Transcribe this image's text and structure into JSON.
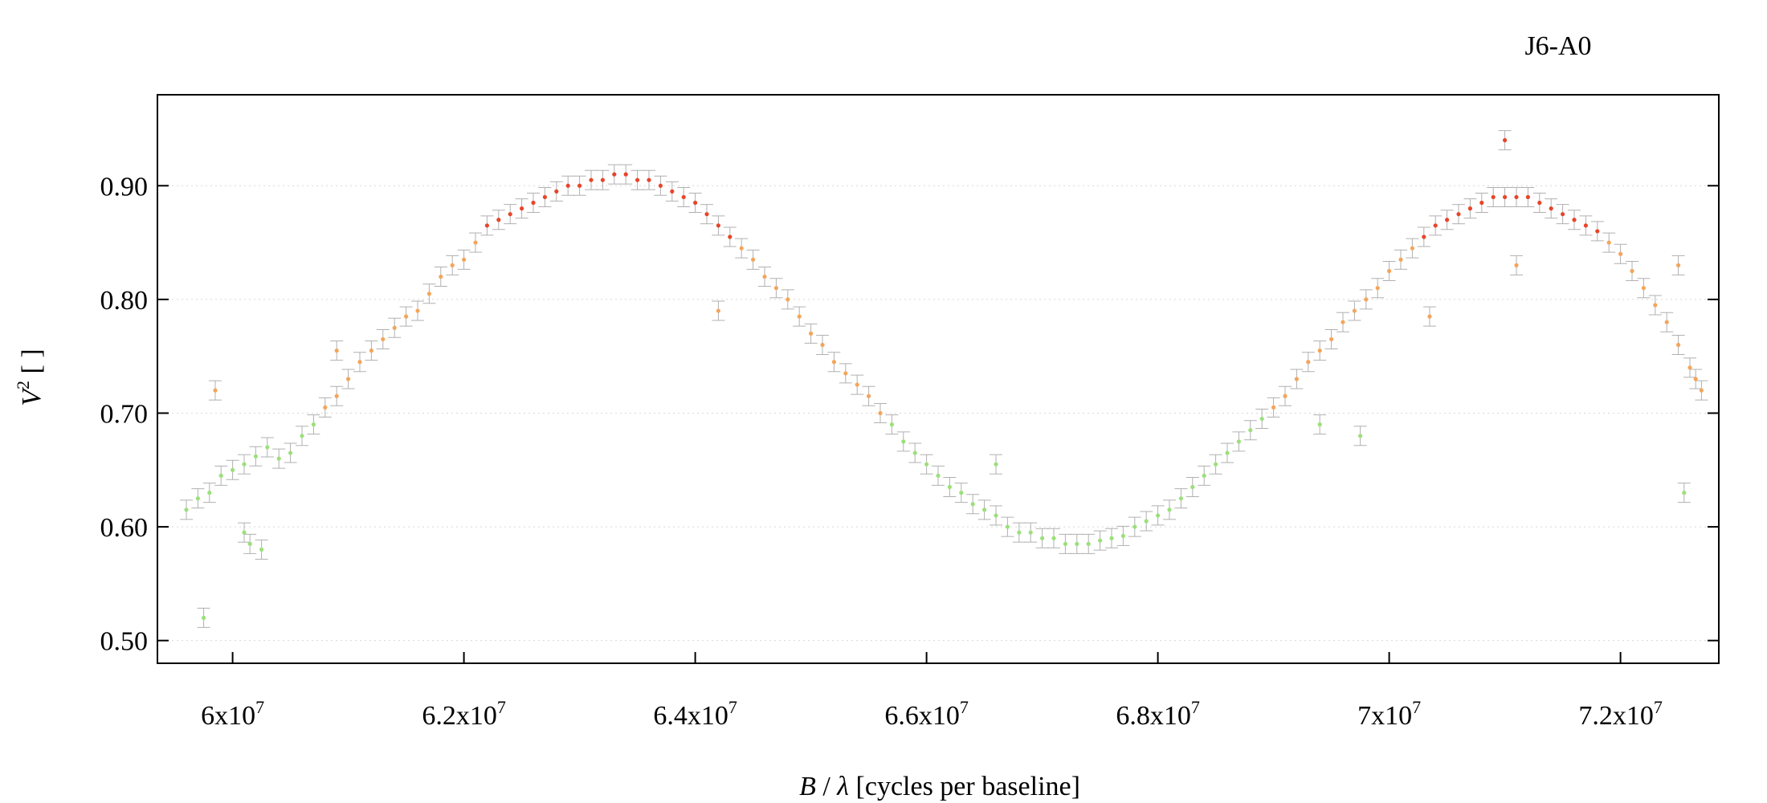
{
  "chart_data": {
    "type": "scatter",
    "title": "J6-A0",
    "xlabel": {
      "italic": "B",
      "slash": " / ",
      "greek": "λ",
      "rest": " [cycles per baseline]"
    },
    "ylabel": {
      "base": "V",
      "sup": "2",
      "rest": " [ ]"
    },
    "xlim": [
      59350000,
      72850000
    ],
    "ylim": [
      0.48,
      0.98
    ],
    "xticks": [
      {
        "value": 60000000,
        "mant": "6x10",
        "exp": "7"
      },
      {
        "value": 62000000,
        "mant": "6.2x10",
        "exp": "7"
      },
      {
        "value": 64000000,
        "mant": "6.4x10",
        "exp": "7"
      },
      {
        "value": 66000000,
        "mant": "6.6x10",
        "exp": "7"
      },
      {
        "value": 68000000,
        "mant": "6.8x10",
        "exp": "7"
      },
      {
        "value": 70000000,
        "mant": "7x10",
        "exp": "7"
      },
      {
        "value": 72000000,
        "mant": "7.2x10",
        "exp": "7"
      }
    ],
    "yticks": [
      {
        "value": 0.5,
        "label": "0.50"
      },
      {
        "value": 0.6,
        "label": "0.60"
      },
      {
        "value": 0.7,
        "label": "0.70"
      },
      {
        "value": 0.8,
        "label": "0.80"
      },
      {
        "value": 0.9,
        "label": "0.90"
      }
    ],
    "grid": "horizontal dotted",
    "colors": {
      "low": "#9be07a",
      "mid": "#f4a55a",
      "high": "#e8452a",
      "errorbar": "#b0b0b0"
    },
    "series": [
      {
        "points": [
          [
            59600000,
            0.615
          ],
          [
            59700000,
            0.625
          ],
          [
            59800000,
            0.63
          ],
          [
            59900000,
            0.645
          ],
          [
            60000000,
            0.65
          ],
          [
            60100000,
            0.655
          ],
          [
            60200000,
            0.662
          ],
          [
            60300000,
            0.67
          ],
          [
            60400000,
            0.66
          ],
          [
            60500000,
            0.665
          ],
          [
            60600000,
            0.68
          ],
          [
            60700000,
            0.69
          ],
          [
            60800000,
            0.705
          ],
          [
            60900000,
            0.715
          ],
          [
            61000000,
            0.73
          ],
          [
            61100000,
            0.745
          ],
          [
            61200000,
            0.755
          ],
          [
            61300000,
            0.765
          ],
          [
            61400000,
            0.775
          ],
          [
            61500000,
            0.785
          ],
          [
            61600000,
            0.79
          ],
          [
            61700000,
            0.805
          ],
          [
            61800000,
            0.82
          ],
          [
            61900000,
            0.83
          ],
          [
            62000000,
            0.835
          ],
          [
            62100000,
            0.85
          ],
          [
            62200000,
            0.865
          ],
          [
            62300000,
            0.87
          ],
          [
            62400000,
            0.875
          ],
          [
            62500000,
            0.88
          ],
          [
            62600000,
            0.885
          ],
          [
            62700000,
            0.89
          ],
          [
            62800000,
            0.895
          ],
          [
            62900000,
            0.9
          ],
          [
            63000000,
            0.9
          ],
          [
            63100000,
            0.905
          ],
          [
            63200000,
            0.905
          ],
          [
            63300000,
            0.91
          ],
          [
            63400000,
            0.91
          ],
          [
            63500000,
            0.905
          ],
          [
            63600000,
            0.905
          ],
          [
            63700000,
            0.9
          ],
          [
            63800000,
            0.895
          ],
          [
            63900000,
            0.89
          ],
          [
            64000000,
            0.885
          ],
          [
            64100000,
            0.875
          ],
          [
            64200000,
            0.865
          ],
          [
            64300000,
            0.855
          ],
          [
            64400000,
            0.845
          ],
          [
            64500000,
            0.835
          ],
          [
            64600000,
            0.82
          ],
          [
            64700000,
            0.81
          ],
          [
            64800000,
            0.8
          ],
          [
            64900000,
            0.785
          ],
          [
            65000000,
            0.77
          ],
          [
            65100000,
            0.76
          ],
          [
            65200000,
            0.745
          ],
          [
            65300000,
            0.735
          ],
          [
            65400000,
            0.725
          ],
          [
            65500000,
            0.715
          ],
          [
            65600000,
            0.7
          ],
          [
            65700000,
            0.69
          ],
          [
            65800000,
            0.675
          ],
          [
            65900000,
            0.665
          ],
          [
            66000000,
            0.655
          ],
          [
            66100000,
            0.645
          ],
          [
            66200000,
            0.635
          ],
          [
            66300000,
            0.63
          ],
          [
            66400000,
            0.62
          ],
          [
            66500000,
            0.615
          ],
          [
            66600000,
            0.61
          ],
          [
            66700000,
            0.6
          ],
          [
            66800000,
            0.595
          ],
          [
            66900000,
            0.595
          ],
          [
            67000000,
            0.59
          ],
          [
            67100000,
            0.59
          ],
          [
            67200000,
            0.585
          ],
          [
            67300000,
            0.585
          ],
          [
            67400000,
            0.585
          ],
          [
            67500000,
            0.588
          ],
          [
            67600000,
            0.59
          ],
          [
            67700000,
            0.592
          ],
          [
            67800000,
            0.6
          ],
          [
            67900000,
            0.605
          ],
          [
            68000000,
            0.61
          ],
          [
            68100000,
            0.615
          ],
          [
            68200000,
            0.625
          ],
          [
            68300000,
            0.635
          ],
          [
            68400000,
            0.645
          ],
          [
            68500000,
            0.655
          ],
          [
            68600000,
            0.665
          ],
          [
            68700000,
            0.675
          ],
          [
            68800000,
            0.685
          ],
          [
            68900000,
            0.695
          ],
          [
            69000000,
            0.705
          ],
          [
            69100000,
            0.715
          ],
          [
            69200000,
            0.73
          ],
          [
            69300000,
            0.745
          ],
          [
            69400000,
            0.755
          ],
          [
            69500000,
            0.765
          ],
          [
            69600000,
            0.78
          ],
          [
            69700000,
            0.79
          ],
          [
            69800000,
            0.8
          ],
          [
            69900000,
            0.81
          ],
          [
            70000000,
            0.825
          ],
          [
            70100000,
            0.835
          ],
          [
            70200000,
            0.845
          ],
          [
            70300000,
            0.855
          ],
          [
            70400000,
            0.865
          ],
          [
            70500000,
            0.87
          ],
          [
            70600000,
            0.875
          ],
          [
            70700000,
            0.88
          ],
          [
            70800000,
            0.885
          ],
          [
            70900000,
            0.89
          ],
          [
            71000000,
            0.89
          ],
          [
            71100000,
            0.89
          ],
          [
            71200000,
            0.89
          ],
          [
            71300000,
            0.885
          ],
          [
            71400000,
            0.88
          ],
          [
            71500000,
            0.875
          ],
          [
            71600000,
            0.87
          ],
          [
            71700000,
            0.865
          ],
          [
            71800000,
            0.86
          ],
          [
            71900000,
            0.85
          ],
          [
            72000000,
            0.84
          ],
          [
            72100000,
            0.825
          ],
          [
            72200000,
            0.81
          ],
          [
            72300000,
            0.795
          ],
          [
            72400000,
            0.78
          ],
          [
            72500000,
            0.76
          ],
          [
            72600000,
            0.74
          ],
          [
            72650000,
            0.73
          ],
          [
            72700000,
            0.72
          ],
          [
            59750000,
            0.52
          ],
          [
            59850000,
            0.72
          ],
          [
            60100000,
            0.595
          ],
          [
            60150000,
            0.585
          ],
          [
            60250000,
            0.58
          ],
          [
            60900000,
            0.755
          ],
          [
            64200000,
            0.79
          ],
          [
            66600000,
            0.655
          ],
          [
            69400000,
            0.69
          ],
          [
            69750000,
            0.68
          ],
          [
            70350000,
            0.785
          ],
          [
            71000000,
            0.94
          ],
          [
            71100000,
            0.83
          ],
          [
            72500000,
            0.83
          ],
          [
            72550000,
            0.63
          ]
        ]
      }
    ]
  }
}
